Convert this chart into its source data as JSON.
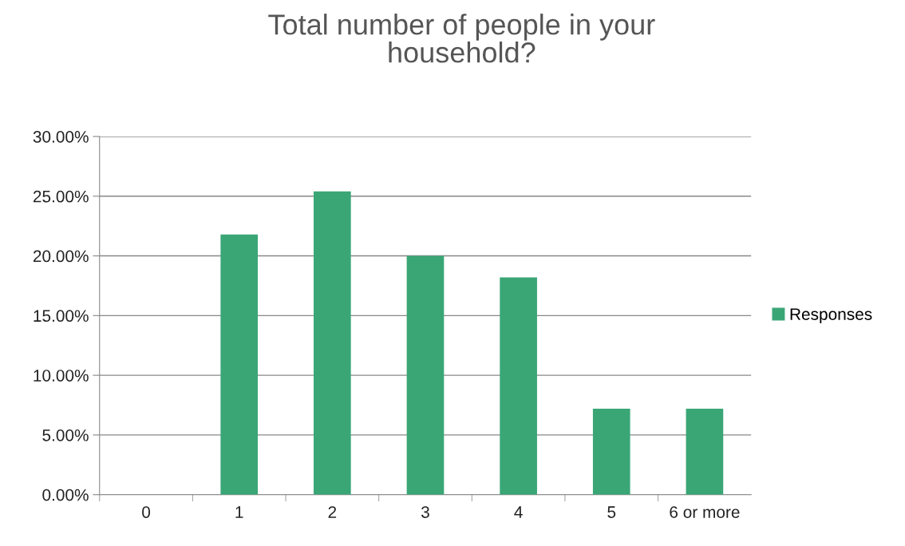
{
  "chart_data": {
    "type": "bar",
    "title": "Total number of people in your\nhousehold?",
    "categories": [
      "0",
      "1",
      "2",
      "3",
      "4",
      "5",
      "6 or more"
    ],
    "series": [
      {
        "name": "Responses",
        "color": "#3aa676",
        "values": [
          0,
          21.8,
          25.4,
          20.0,
          18.2,
          7.2,
          7.2
        ]
      }
    ],
    "ylim": [
      0,
      30
    ],
    "yticks": [
      {
        "value": 0,
        "label": "0.00%"
      },
      {
        "value": 5,
        "label": "5.00%"
      },
      {
        "value": 10,
        "label": "10.00%"
      },
      {
        "value": 15,
        "label": "15.00%"
      },
      {
        "value": 20,
        "label": "20.00%"
      },
      {
        "value": 25,
        "label": "25.00%"
      },
      {
        "value": 30,
        "label": "30.00%"
      }
    ],
    "grid": "y",
    "legend": "right"
  }
}
